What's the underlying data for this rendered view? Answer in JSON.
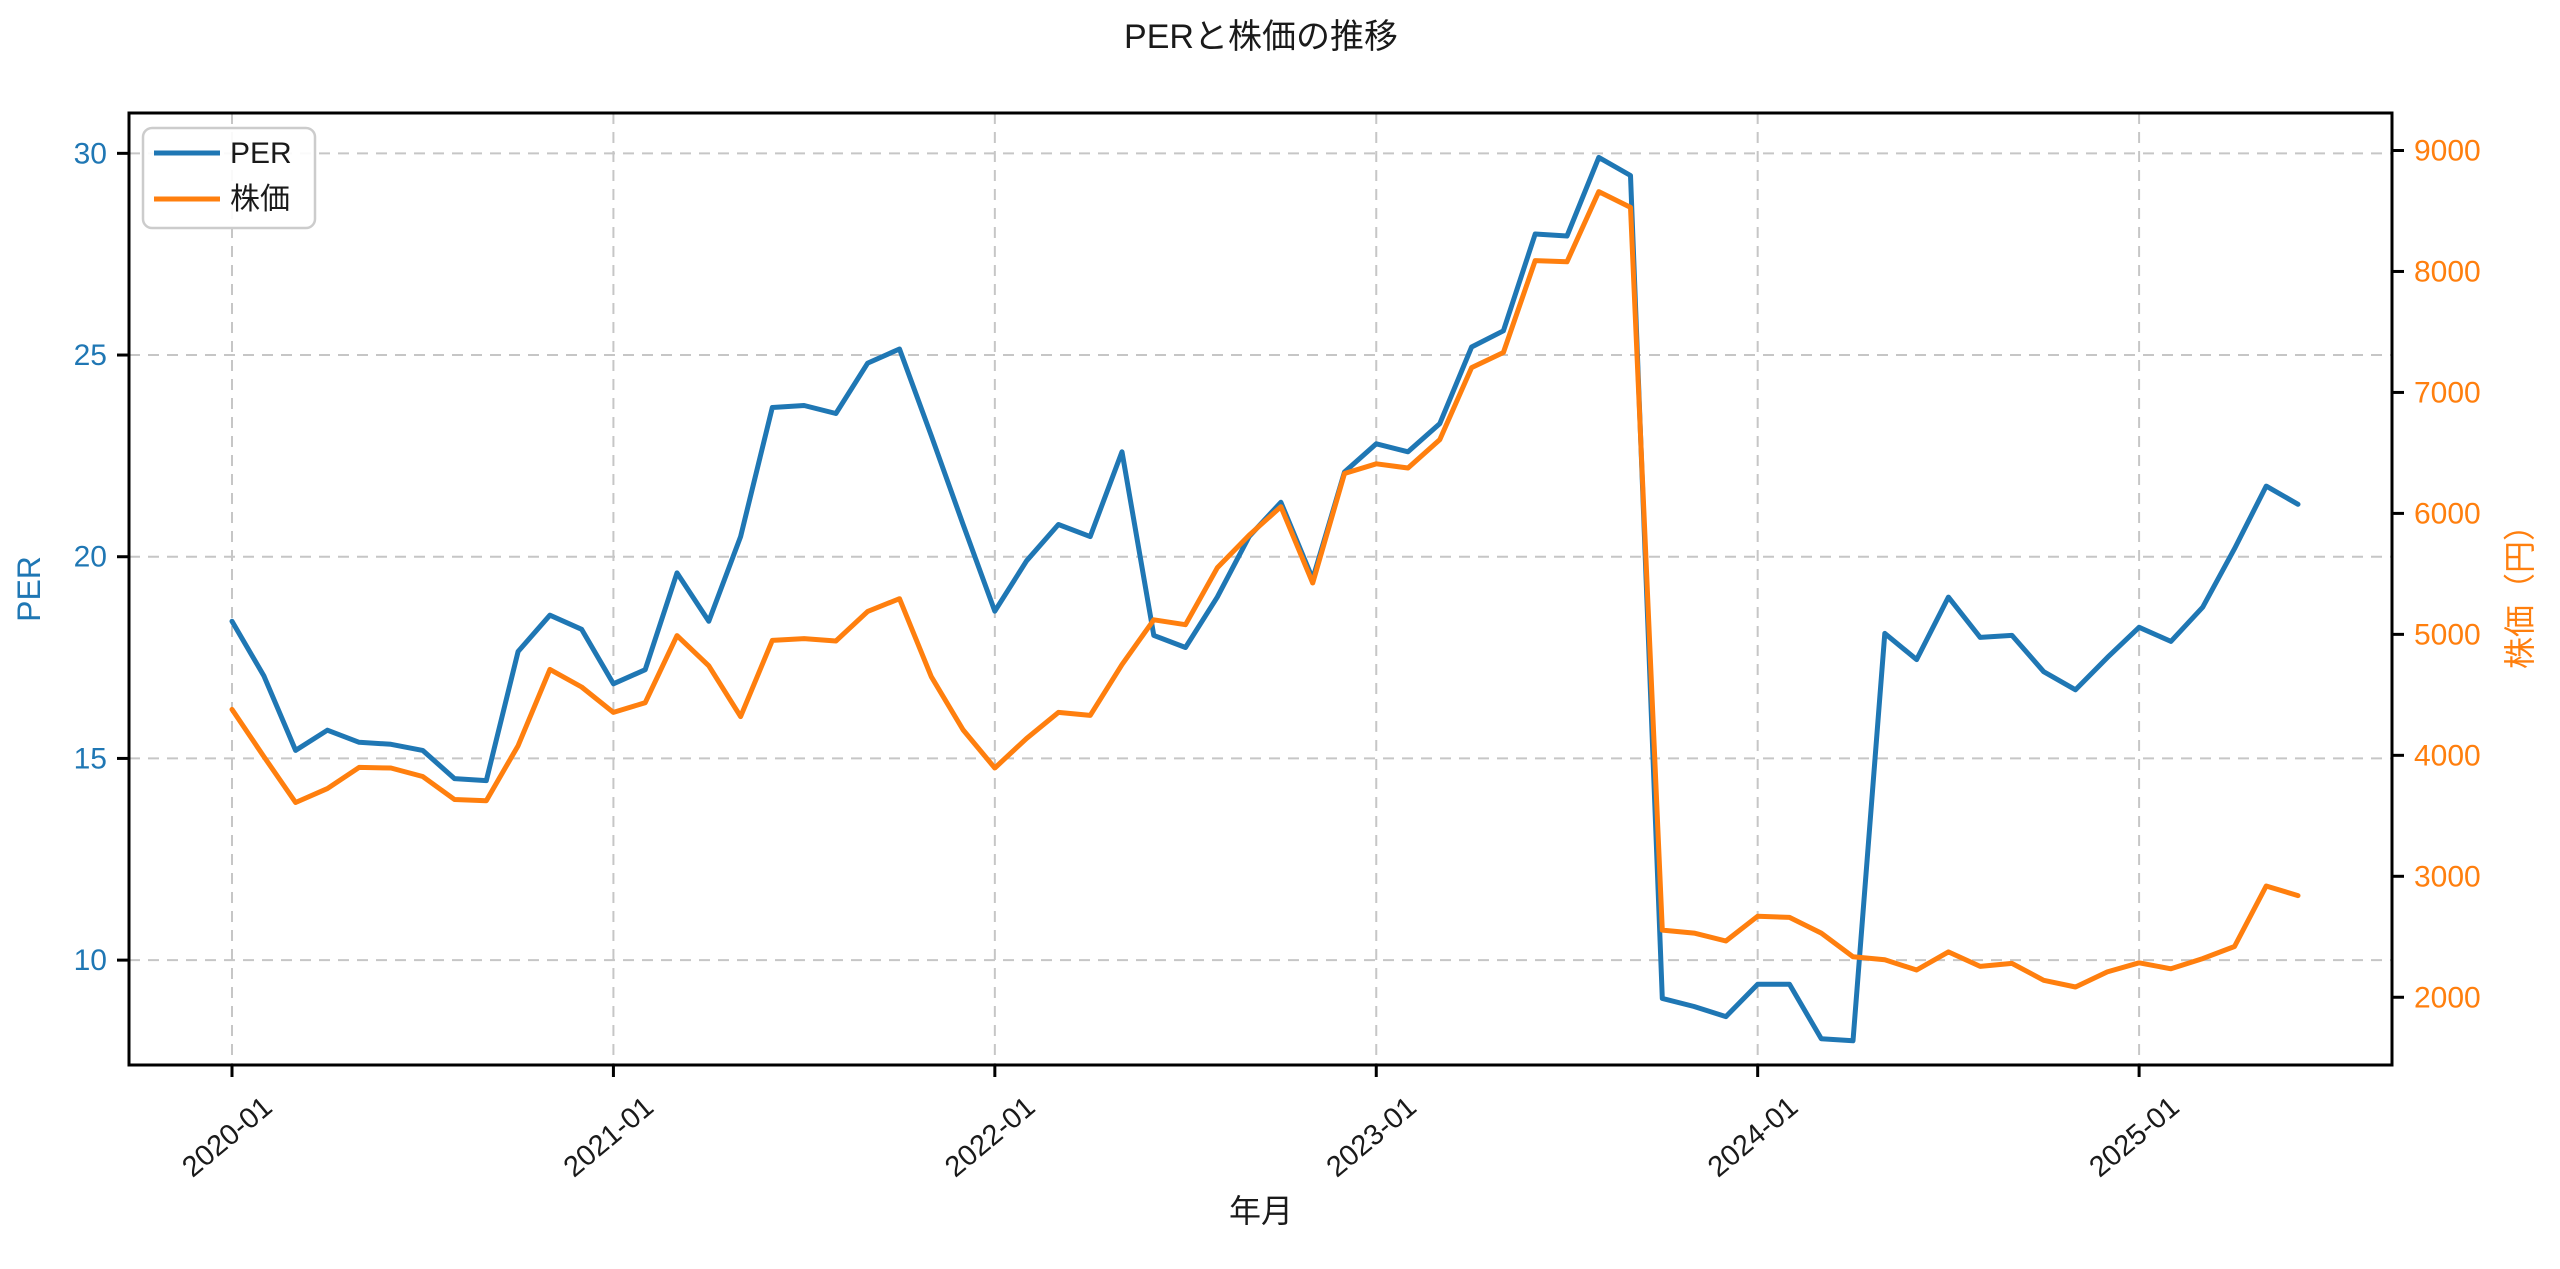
{
  "title": "PERと株価の推移",
  "legend": {
    "items": [
      {
        "label": "PER",
        "color": "#1f77b4"
      },
      {
        "label": "株価",
        "color": "#ff7f0e"
      }
    ]
  },
  "axes": {
    "x": {
      "label": "年月",
      "tick_labels": [
        "2020-01",
        "2021-01",
        "2022-01",
        "2023-01",
        "2024-01",
        "2025-01"
      ]
    },
    "y_left": {
      "label": "PER",
      "color": "#1f77b4",
      "ticks": [
        10,
        15,
        20,
        25,
        30
      ]
    },
    "y_right": {
      "label": "株価（円）",
      "color": "#ff7f0e",
      "ticks": [
        2000,
        3000,
        4000,
        5000,
        6000,
        7000,
        8000,
        9000
      ]
    }
  },
  "chart_data": {
    "type": "line",
    "title": "PERと株価の推移",
    "xlabel": "年月",
    "ylabel_left": "PER",
    "ylabel_right": "株価（円）",
    "grid": true,
    "legend_position": "upper left",
    "ylim_left": [
      7.4,
      31.0
    ],
    "ylim_right": [
      1440,
      9310
    ],
    "x": [
      "2020-01",
      "2020-02",
      "2020-03",
      "2020-04",
      "2020-05",
      "2020-06",
      "2020-07",
      "2020-08",
      "2020-09",
      "2020-10",
      "2020-11",
      "2020-12",
      "2021-01",
      "2021-02",
      "2021-03",
      "2021-04",
      "2021-05",
      "2021-06",
      "2021-07",
      "2021-08",
      "2021-09",
      "2021-10",
      "2021-11",
      "2021-12",
      "2022-01",
      "2022-02",
      "2022-03",
      "2022-04",
      "2022-05",
      "2022-06",
      "2022-07",
      "2022-08",
      "2022-09",
      "2022-10",
      "2022-11",
      "2022-12",
      "2023-01",
      "2023-02",
      "2023-03",
      "2023-04",
      "2023-05",
      "2023-06",
      "2023-07",
      "2023-08",
      "2023-09",
      "2023-10",
      "2023-11",
      "2023-12",
      "2024-01",
      "2024-02",
      "2024-03",
      "2024-04",
      "2024-05",
      "2024-06",
      "2024-07",
      "2024-08",
      "2024-09",
      "2024-10",
      "2024-11",
      "2024-12",
      "2025-01",
      "2025-02",
      "2025-03",
      "2025-04",
      "2025-05",
      "2025-06"
    ],
    "series": [
      {
        "name": "PER",
        "axis": "left",
        "color": "#1f77b4",
        "values": [
          18.4,
          17.05,
          15.2,
          15.7,
          15.4,
          15.35,
          15.2,
          14.5,
          14.45,
          17.65,
          18.55,
          18.2,
          16.85,
          17.2,
          19.6,
          18.4,
          20.5,
          23.7,
          23.75,
          23.55,
          24.8,
          25.15,
          23.0,
          20.8,
          18.65,
          19.9,
          20.8,
          20.5,
          22.6,
          18.05,
          17.75,
          19.0,
          20.5,
          21.35,
          19.45,
          22.1,
          22.8,
          22.6,
          23.3,
          25.2,
          25.6,
          28.0,
          27.95,
          29.9,
          29.45,
          9.05,
          8.85,
          8.6,
          9.4,
          9.4,
          8.05,
          8.0,
          18.1,
          17.45,
          19.0,
          18.0,
          18.05,
          17.15,
          16.7,
          17.5,
          18.25,
          17.9,
          18.75,
          20.2,
          21.75,
          21.3
        ]
      },
      {
        "name": "株価",
        "axis": "right",
        "color": "#ff7f0e",
        "values": [
          4380,
          3990,
          3610,
          3725,
          3900,
          3895,
          3825,
          3635,
          3625,
          4080,
          4710,
          4565,
          4355,
          4435,
          4990,
          4740,
          4320,
          4950,
          4965,
          4945,
          5190,
          5295,
          4650,
          4210,
          3895,
          4140,
          4355,
          4330,
          4750,
          5120,
          5080,
          5550,
          5820,
          6055,
          5425,
          6330,
          6410,
          6375,
          6610,
          7205,
          7330,
          8090,
          8080,
          8660,
          8530,
          2555,
          2530,
          2465,
          2670,
          2660,
          2530,
          2335,
          2310,
          2225,
          2375,
          2255,
          2280,
          2140,
          2085,
          2210,
          2285,
          2235,
          2320,
          2420,
          2920,
          2840
        ]
      }
    ]
  },
  "style": {
    "grid_color": "#c6c6c6",
    "spine_color": "#000000",
    "text_color": "#1a1a1a"
  }
}
